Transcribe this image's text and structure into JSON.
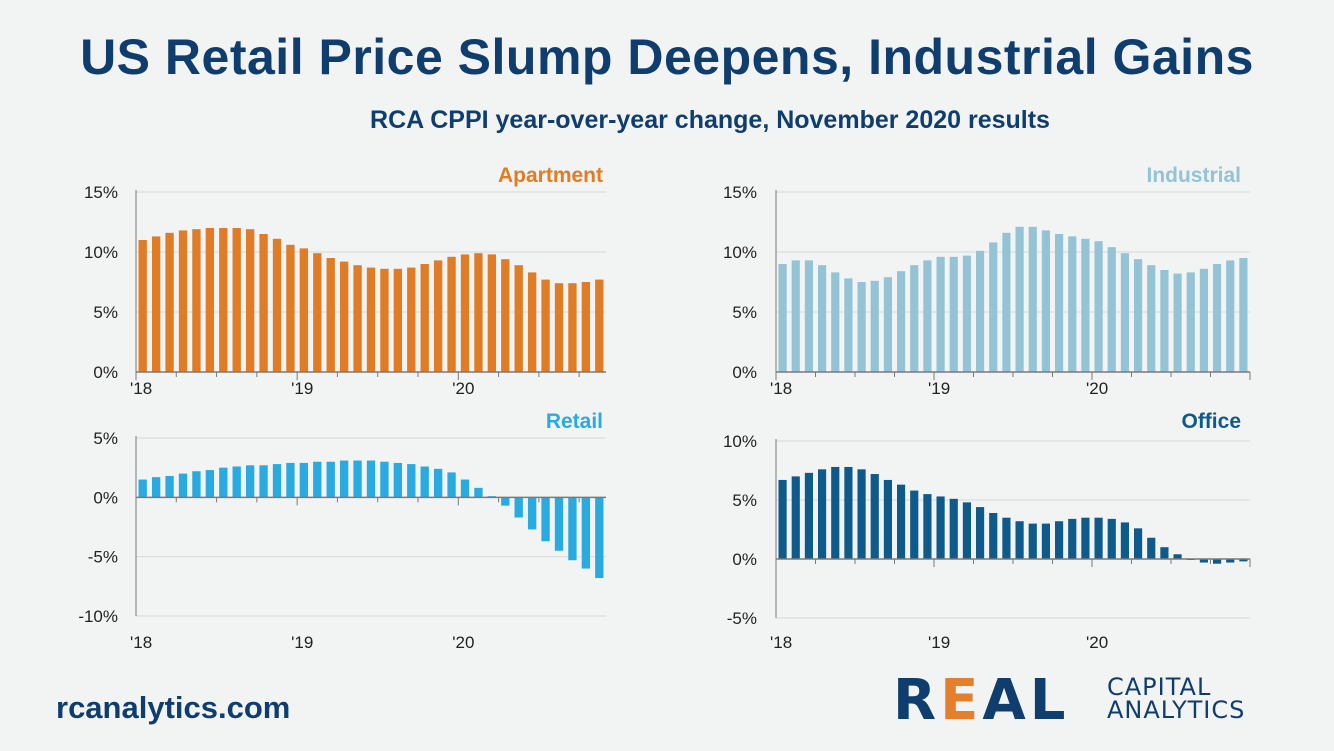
{
  "header": {
    "title": "US Retail Price Slump Deepens, Industrial Gains",
    "subtitle": "RCA CPPI year-over-year change, November 2020 results"
  },
  "footer": {
    "url": "rcanalytics.com",
    "logo_real": "REAL",
    "logo_capital": "CAPITAL",
    "logo_analytics": "ANALYTICS"
  },
  "colors": {
    "apartment": "#e07b26",
    "industrial": "#93c3d4",
    "retail": "#29abe2",
    "office": "#0e5a8a",
    "text": "#0f3e6e",
    "axis": "#7a7a7a",
    "grid": "#d6d8da"
  },
  "chart_data": [
    {
      "id": "apartment",
      "type": "bar",
      "title": "Apartment",
      "x_tick_labels": [
        "'18",
        "'19",
        "'20"
      ],
      "y_tick_labels": [
        "15%",
        "10%",
        "5%",
        "0%"
      ],
      "ylim": [
        0,
        15
      ],
      "values": [
        11.0,
        11.3,
        11.6,
        11.8,
        11.9,
        12.0,
        12.0,
        12.0,
        11.9,
        11.5,
        11.1,
        10.6,
        10.3,
        9.9,
        9.5,
        9.2,
        8.9,
        8.7,
        8.6,
        8.6,
        8.7,
        9.0,
        9.3,
        9.6,
        9.8,
        9.9,
        9.8,
        9.4,
        8.9,
        8.3,
        7.7,
        7.4,
        7.4,
        7.5,
        7.7
      ]
    },
    {
      "id": "industrial",
      "type": "bar",
      "title": "Industrial",
      "x_tick_labels": [
        "'18",
        "'19",
        "'20"
      ],
      "y_tick_labels": [
        "15%",
        "10%",
        "5%",
        "0%"
      ],
      "ylim": [
        0,
        15
      ],
      "values": [
        9.0,
        9.3,
        9.3,
        8.9,
        8.3,
        7.8,
        7.5,
        7.6,
        7.9,
        8.4,
        8.9,
        9.3,
        9.6,
        9.6,
        9.7,
        10.1,
        10.8,
        11.6,
        12.1,
        12.1,
        11.8,
        11.5,
        11.3,
        11.1,
        10.9,
        10.4,
        9.9,
        9.4,
        8.9,
        8.5,
        8.2,
        8.3,
        8.6,
        9.0,
        9.3,
        9.5
      ]
    },
    {
      "id": "retail",
      "type": "bar",
      "title": "Retail",
      "x_tick_labels": [
        "'18",
        "'19",
        "'20"
      ],
      "y_tick_labels": [
        "5%",
        "0%",
        "-5%",
        "-10%"
      ],
      "ylim": [
        -10,
        5
      ],
      "values": [
        1.5,
        1.7,
        1.8,
        2.0,
        2.2,
        2.3,
        2.5,
        2.6,
        2.7,
        2.7,
        2.8,
        2.9,
        2.9,
        3.0,
        3.0,
        3.1,
        3.1,
        3.1,
        3.0,
        2.9,
        2.8,
        2.6,
        2.4,
        2.1,
        1.5,
        0.8,
        0.1,
        -0.7,
        -1.7,
        -2.7,
        -3.7,
        -4.5,
        -5.3,
        -6.0,
        -6.8
      ]
    },
    {
      "id": "office",
      "type": "bar",
      "title": "Office",
      "x_tick_labels": [
        "'18",
        "'19",
        "'20"
      ],
      "y_tick_labels": [
        "10%",
        "5%",
        "0%",
        "-5%"
      ],
      "ylim": [
        -5,
        10
      ],
      "values": [
        6.7,
        7.0,
        7.3,
        7.6,
        7.8,
        7.8,
        7.6,
        7.2,
        6.7,
        6.3,
        5.8,
        5.5,
        5.3,
        5.1,
        4.8,
        4.4,
        3.9,
        3.5,
        3.2,
        3.0,
        3.0,
        3.2,
        3.4,
        3.5,
        3.5,
        3.4,
        3.1,
        2.6,
        1.8,
        1.0,
        0.4,
        0.0,
        -0.3,
        -0.4,
        -0.3,
        -0.2
      ]
    }
  ]
}
